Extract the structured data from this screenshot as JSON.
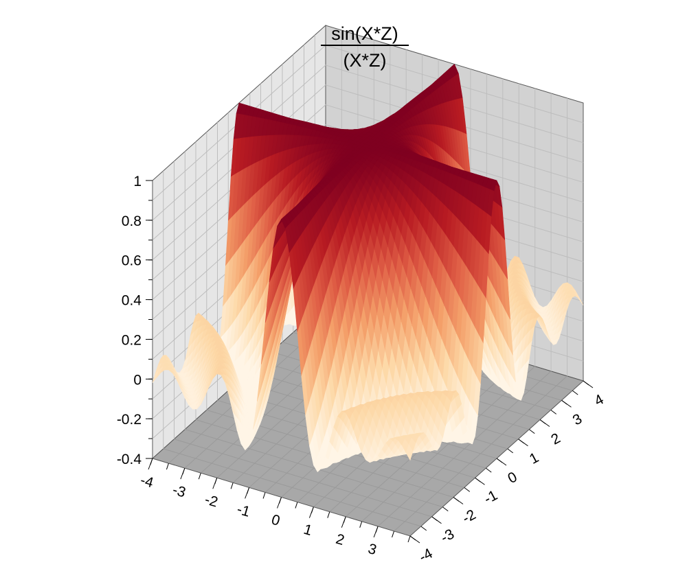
{
  "chart_data": {
    "type": "surface",
    "title": {
      "numerator": "sin(X*Z)",
      "denominator": "(X*Z)"
    },
    "function": "sin(X*Z)/(X*Z)",
    "x": {
      "range": [
        -4,
        4
      ],
      "ticks": [
        "-4",
        "-3",
        "-2",
        "-1",
        "0",
        "1",
        "2",
        "3"
      ]
    },
    "z": {
      "range": [
        -4,
        4
      ],
      "ticks": [
        "-4",
        "-3",
        "-2",
        "-1",
        "0",
        "1",
        "2",
        "3",
        "4"
      ]
    },
    "y": {
      "range": [
        -0.4,
        1
      ],
      "ticks": [
        "-0.4",
        "-0.2",
        "0",
        "0.2",
        "0.4",
        "0.6",
        "0.8",
        "1"
      ]
    },
    "grid": true,
    "colormap": [
      "#fff5e6",
      "#fdd9a8",
      "#f4a06a",
      "#df5d45",
      "#b81b22",
      "#7f0020"
    ],
    "colors": {
      "floor": "#a8a8a8",
      "back_wall": "#d2d2d2",
      "side_wall": "#e6e6e6",
      "grid_line": "#bdbdbd"
    }
  }
}
